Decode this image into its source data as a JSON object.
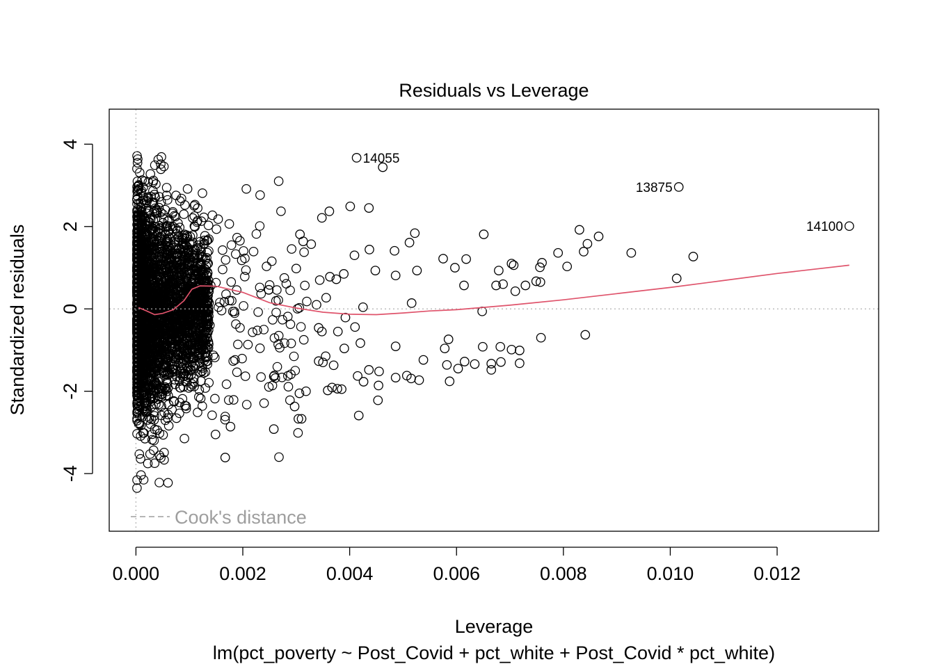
{
  "chart_data": {
    "type": "scatter",
    "title": "Residuals vs Leverage",
    "xlabel": "Leverage",
    "subtitle": "lm(pct_poverty ~ Post_Covid + pct_white + Post_Covid * pct_white)",
    "ylabel": "Standardized residuals",
    "xlim": [
      -0.0005,
      0.0139
    ],
    "ylim": [
      -5.4,
      4.85
    ],
    "x_ticks": [
      0.0,
      0.002,
      0.004,
      0.006,
      0.008,
      0.01,
      0.012
    ],
    "x_tick_labels": [
      "0.000",
      "0.002",
      "0.004",
      "0.006",
      "0.008",
      "0.010",
      "0.012"
    ],
    "y_ticks": [
      4,
      2,
      0,
      -2,
      -4
    ],
    "y_tick_labels": [
      "4",
      "2",
      "0",
      "-2",
      "-4"
    ],
    "grid": false,
    "reference_lines": {
      "x": 0,
      "y": 0,
      "style": "dotted",
      "color": "#b0b0b0"
    },
    "legend": {
      "label": "Cook's distance",
      "position": "bottom-left",
      "line_style": "dashed",
      "color": "#9e9e9e"
    },
    "point_color": "#000000",
    "smooth_color": "#df536b",
    "labeled_points": [
      {
        "id": "14055",
        "x": 0.00413,
        "y": 3.67
      },
      {
        "id": "13875",
        "x": 0.01016,
        "y": 2.96
      },
      {
        "id": "14100",
        "x": 0.01335,
        "y": 2.01
      }
    ],
    "smooth_line": [
      [
        5e-05,
        0.03
      ],
      [
        0.0002,
        -0.05
      ],
      [
        0.00035,
        -0.14
      ],
      [
        0.0005,
        -0.11
      ],
      [
        0.0007,
        -0.02
      ],
      [
        0.0009,
        0.2
      ],
      [
        0.00105,
        0.48
      ],
      [
        0.0012,
        0.56
      ],
      [
        0.0015,
        0.55
      ],
      [
        0.002,
        0.4
      ],
      [
        0.0025,
        0.15
      ],
      [
        0.003,
        0.02
      ],
      [
        0.0035,
        -0.08
      ],
      [
        0.004,
        -0.13
      ],
      [
        0.0045,
        -0.14
      ],
      [
        0.005,
        -0.1
      ],
      [
        0.0055,
        -0.05
      ],
      [
        0.006,
        -0.02
      ],
      [
        0.007,
        0.09
      ],
      [
        0.008,
        0.22
      ],
      [
        0.009,
        0.37
      ],
      [
        0.01,
        0.52
      ],
      [
        0.011,
        0.69
      ],
      [
        0.012,
        0.86
      ],
      [
        0.01335,
        1.06
      ]
    ],
    "sparse_points": [
      [
        0.00413,
        3.67
      ],
      [
        0.00462,
        3.44
      ],
      [
        0.01016,
        2.96
      ],
      [
        0.01335,
        2.01
      ],
      [
        0.00401,
        2.49
      ],
      [
        0.00436,
        2.45
      ],
      [
        0.00348,
        2.21
      ],
      [
        0.00362,
        2.37
      ],
      [
        0.00522,
        1.84
      ],
      [
        0.00651,
        1.81
      ],
      [
        0.0083,
        1.92
      ],
      [
        0.00866,
        1.76
      ],
      [
        0.00845,
        1.58
      ],
      [
        0.00307,
        1.81
      ],
      [
        0.00313,
        1.64
      ],
      [
        0.00328,
        1.57
      ],
      [
        0.00512,
        1.61
      ],
      [
        0.00484,
        1.41
      ],
      [
        0.00437,
        1.44
      ],
      [
        0.00409,
        1.3
      ],
      [
        0.00927,
        1.36
      ],
      [
        0.0079,
        1.36
      ],
      [
        0.00838,
        1.39
      ],
      [
        0.01043,
        1.27
      ],
      [
        0.00575,
        1.22
      ],
      [
        0.00618,
        1.21
      ],
      [
        0.00597,
        1.0
      ],
      [
        0.00526,
        0.93
      ],
      [
        0.00448,
        0.93
      ],
      [
        0.00679,
        0.93
      ],
      [
        0.00703,
        1.1
      ],
      [
        0.00707,
        1.06
      ],
      [
        0.0076,
        1.12
      ],
      [
        0.00756,
        1.01
      ],
      [
        0.00807,
        1.03
      ],
      [
        0.00389,
        0.85
      ],
      [
        0.00375,
        0.72
      ],
      [
        0.00363,
        0.78
      ],
      [
        0.00344,
        0.7
      ],
      [
        0.003,
        0.98
      ],
      [
        0.00486,
        0.81
      ],
      [
        0.00614,
        0.57
      ],
      [
        0.00674,
        0.57
      ],
      [
        0.00687,
        0.6
      ],
      [
        0.0071,
        0.43
      ],
      [
        0.00729,
        0.57
      ],
      [
        0.00749,
        0.67
      ],
      [
        0.00757,
        0.65
      ],
      [
        0.01012,
        0.74
      ],
      [
        0.00356,
        0.27
      ],
      [
        0.00338,
        0.1
      ],
      [
        0.00425,
        0.04
      ],
      [
        0.00516,
        0.14
      ],
      [
        0.00648,
        -0.06
      ],
      [
        0.00392,
        -0.21
      ],
      [
        0.0041,
        -0.44
      ],
      [
        0.00342,
        -0.46
      ],
      [
        0.00348,
        -0.55
      ],
      [
        0.00378,
        -0.55
      ],
      [
        0.0039,
        -0.96
      ],
      [
        0.0042,
        -0.83
      ],
      [
        0.00486,
        -0.91
      ],
      [
        0.00342,
        -1.27
      ],
      [
        0.0035,
        -1.3
      ],
      [
        0.00355,
        -1.15
      ],
      [
        0.0037,
        -1.37
      ],
      [
        0.00436,
        -1.48
      ],
      [
        0.00455,
        -1.52
      ],
      [
        0.00415,
        -1.63
      ],
      [
        0.00426,
        -1.77
      ],
      [
        0.00454,
        -1.86
      ],
      [
        0.00486,
        -1.67
      ],
      [
        0.00515,
        -1.69
      ],
      [
        0.00507,
        -1.62
      ],
      [
        0.0053,
        -1.73
      ],
      [
        0.00538,
        -1.24
      ],
      [
        0.00578,
        -0.96
      ],
      [
        0.00585,
        -0.74
      ],
      [
        0.00582,
        -1.36
      ],
      [
        0.00603,
        -1.45
      ],
      [
        0.00615,
        -1.28
      ],
      [
        0.00587,
        -1.76
      ],
      [
        0.00634,
        -1.34
      ],
      [
        0.00649,
        -0.92
      ],
      [
        0.00665,
        -1.33
      ],
      [
        0.00665,
        -1.48
      ],
      [
        0.00683,
        -1.29
      ],
      [
        0.00682,
        -0.92
      ],
      [
        0.00703,
        -0.99
      ],
      [
        0.00718,
        -1.01
      ],
      [
        0.00718,
        -1.32
      ],
      [
        0.00758,
        -0.7
      ],
      [
        0.00841,
        -0.63
      ],
      [
        0.00367,
        -1.91
      ],
      [
        0.00377,
        -1.94
      ],
      [
        0.00385,
        -1.95
      ],
      [
        0.00359,
        -1.98
      ],
      [
        0.00453,
        -2.22
      ],
      [
        0.00417,
        -2.59
      ],
      [
        0.00306,
        -2.05
      ],
      [
        0.00297,
        -2.37
      ],
      [
        0.00304,
        -2.67
      ],
      [
        0.00258,
        -2.92
      ],
      [
        0.00177,
        -2.86
      ],
      [
        0.00149,
        -3.05
      ],
      [
        0.00167,
        -3.61
      ],
      [
        0.0031,
        -2.67
      ]
    ],
    "dense_cluster": {
      "note": "thousands of overlapping observations at low leverage",
      "x_range": [
        0.0,
        0.0014
      ],
      "y_range": [
        -4.4,
        3.8
      ],
      "point_count": 3200
    }
  }
}
